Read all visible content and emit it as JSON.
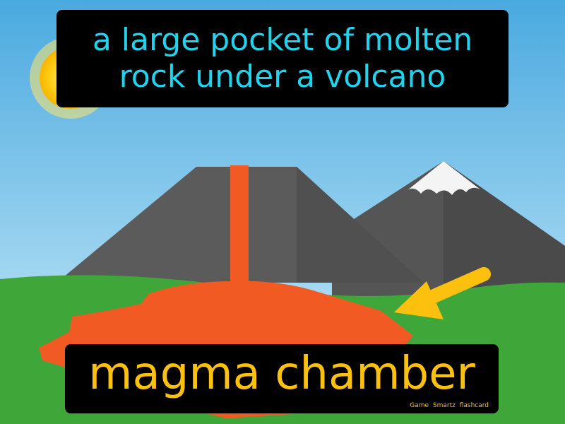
{
  "definition": {
    "line1": "a large pocket of molten",
    "line2": "rock under a volcano"
  },
  "term": "magma chamber",
  "brand": "Game Smartz flashcard",
  "colors": {
    "sky": "#62b6e6",
    "grass": "#3fa63a",
    "lava": "#f15a22",
    "mountain": "#555555",
    "arrow": "#fcc10f",
    "definition_text": "#22d3ee",
    "term_text": "#fcc10f"
  },
  "icons": [
    "sun-icon",
    "volcano-icon",
    "arrow-icon"
  ]
}
